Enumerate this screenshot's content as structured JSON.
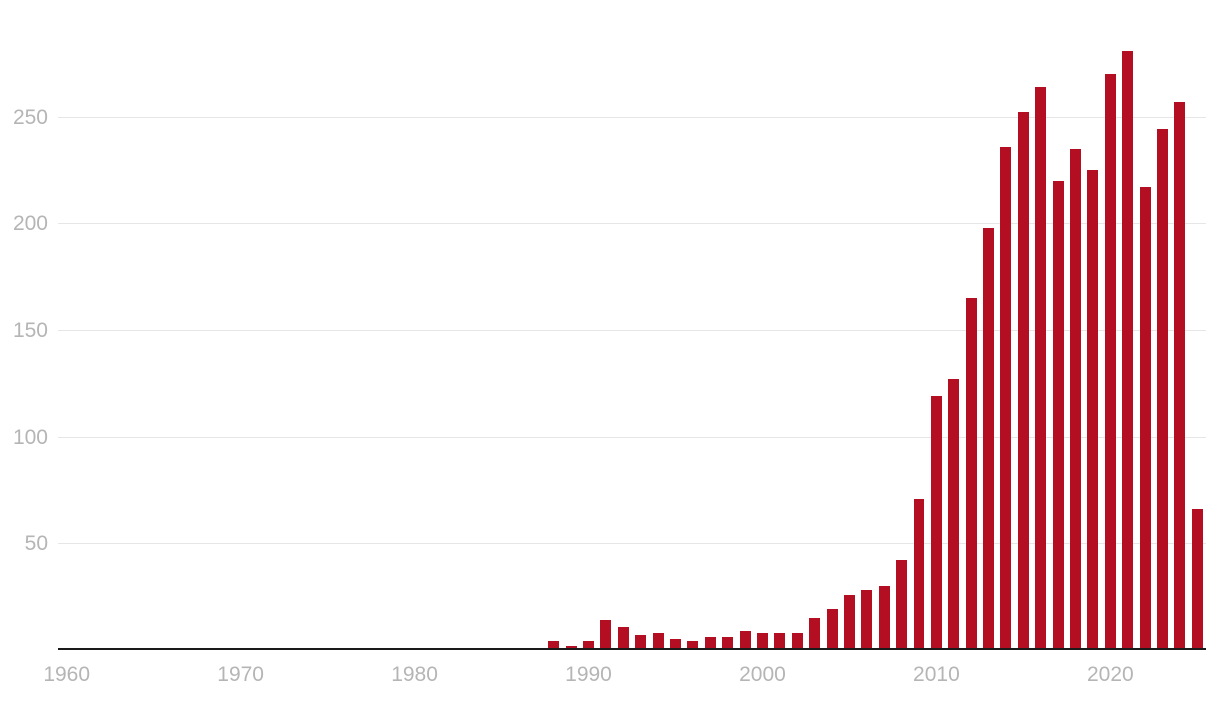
{
  "chart_data": {
    "type": "bar",
    "title": "",
    "xlabel": "",
    "ylabel": "",
    "x": [
      1960,
      1961,
      1962,
      1963,
      1964,
      1965,
      1966,
      1967,
      1968,
      1969,
      1970,
      1971,
      1972,
      1973,
      1974,
      1975,
      1976,
      1977,
      1978,
      1979,
      1980,
      1981,
      1982,
      1983,
      1984,
      1985,
      1986,
      1987,
      1988,
      1989,
      1990,
      1991,
      1992,
      1993,
      1994,
      1995,
      1996,
      1997,
      1998,
      1999,
      2000,
      2001,
      2002,
      2003,
      2004,
      2005,
      2006,
      2007,
      2008,
      2009,
      2010,
      2011,
      2012,
      2013,
      2014,
      2015,
      2016,
      2017,
      2018,
      2019,
      2020,
      2021,
      2022,
      2023,
      2024,
      2025
    ],
    "values": [
      1,
      0,
      0,
      0,
      0,
      0,
      0,
      0,
      0,
      0,
      1,
      0,
      0,
      0,
      0,
      0,
      0,
      0,
      0,
      1,
      0,
      0,
      0,
      0,
      0,
      0,
      0,
      0,
      4,
      2,
      4,
      14,
      11,
      7,
      8,
      5,
      4,
      6,
      6,
      9,
      8,
      8,
      8,
      15,
      19,
      26,
      28,
      30,
      42,
      71,
      119,
      127,
      165,
      198,
      236,
      252,
      264,
      220,
      235,
      225,
      270,
      281,
      217,
      244,
      257,
      66
    ],
    "ylim": [
      0,
      300
    ],
    "yticks": [
      50,
      100,
      150,
      200,
      250
    ],
    "xticks": [
      1960,
      1970,
      1980,
      1990,
      2000,
      2010,
      2020
    ],
    "grid": true,
    "legend": "none",
    "colors": {
      "bar": "#b40e22",
      "grid": "#e6e6e6",
      "axis": "#1a1a1a",
      "tick_label": "#b5b5b5",
      "background": "#ffffff"
    }
  }
}
